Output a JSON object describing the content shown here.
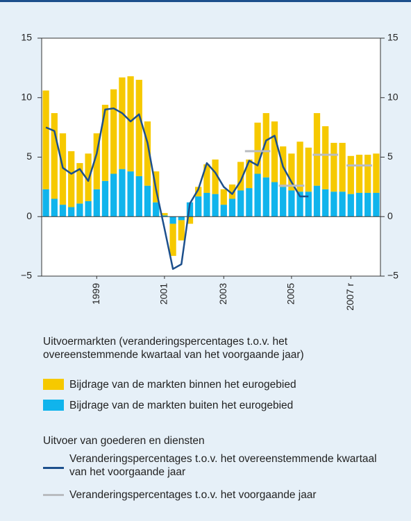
{
  "chart_data": {
    "type": "bar",
    "categories": [
      null,
      null,
      null,
      null,
      null,
      null,
      "1999",
      null,
      null,
      null,
      null,
      null,
      null,
      null,
      "2001",
      null,
      null,
      null,
      null,
      null,
      null,
      "2003",
      null,
      null,
      null,
      null,
      null,
      null,
      null,
      "2005",
      null,
      null,
      null,
      null,
      null,
      null,
      "2007 r",
      null,
      null,
      null
    ],
    "series": [
      {
        "name": "Bijdrage van de markten binnen het eurogebied",
        "type": "bar",
        "color": "#f6c900",
        "values": [
          8.3,
          7.2,
          6.0,
          4.7,
          3.4,
          4.0,
          4.7,
          6.4,
          7.1,
          7.7,
          8.0,
          8.1,
          5.4,
          2.6,
          0.2,
          -2.7,
          -1.7,
          -0.6,
          0.8,
          2.4,
          2.9,
          1.3,
          1.2,
          2.4,
          2.4,
          4.3,
          5.4,
          5.1,
          3.4,
          3.1,
          4.2,
          3.7,
          6.1,
          5.3,
          4.1,
          4.1,
          3.2,
          3.2,
          3.2,
          3.3
        ]
      },
      {
        "name": "Bijdrage van de markten buiten het eurogebied",
        "type": "bar",
        "color": "#10b4ec",
        "values": [
          2.3,
          1.5,
          1.0,
          0.8,
          1.1,
          1.3,
          2.3,
          3.0,
          3.6,
          4.0,
          3.8,
          3.4,
          2.6,
          1.2,
          0.1,
          -0.6,
          -0.3,
          1.2,
          1.7,
          2.0,
          1.9,
          1.0,
          1.5,
          2.2,
          2.4,
          3.6,
          3.3,
          2.9,
          2.5,
          2.2,
          2.1,
          2.1,
          2.6,
          2.3,
          2.1,
          2.1,
          1.9,
          2.0,
          2.0,
          2.0
        ]
      },
      {
        "name": "Veranderingspercentages t.o.v. het overeenstemmende kwartaal van het voorgaande jaar",
        "type": "line",
        "color": "#1c4f8c",
        "values": [
          7.5,
          7.2,
          4.1,
          3.6,
          4.0,
          3.0,
          5.3,
          9.0,
          9.1,
          8.7,
          8.0,
          8.6,
          6.2,
          2.3,
          -1.0,
          -4.4,
          -4.0,
          1.1,
          2.3,
          4.5,
          3.7,
          2.5,
          1.9,
          3.0,
          4.7,
          4.3,
          6.4,
          6.8,
          4.2,
          2.9,
          1.7,
          1.7,
          null,
          null,
          null,
          null,
          null,
          null,
          null,
          null
        ]
      },
      {
        "name": "Veranderingspercentages t.o.v. het voorgaande jaar",
        "type": "step",
        "color": "#b9bcc0",
        "values": [
          null,
          null,
          null,
          null,
          null,
          null,
          null,
          null,
          null,
          null,
          null,
          null,
          null,
          null,
          null,
          null,
          null,
          null,
          null,
          null,
          null,
          null,
          null,
          null,
          5.5,
          5.5,
          5.5,
          null,
          2.6,
          2.6,
          2.6,
          null,
          5.2,
          5.2,
          5.2,
          null,
          4.3,
          4.3,
          4.3,
          null
        ]
      }
    ],
    "legend_note": [
      "Uitvoermarkten (veranderingspercentages t.o.v. het",
      "overeenstemmende kwartaal van het voorgaande jaar)"
    ],
    "legend_heading": "Uitvoer van goederen en diensten",
    "ylim": [
      -5,
      15
    ],
    "yticks": [
      {
        "value": -5,
        "label": "−5"
      },
      0,
      5,
      10,
      15
    ],
    "y2lim": [
      -5,
      15
    ],
    "y2ticks": [
      {
        "value": -5,
        "label": "−5"
      },
      0,
      5,
      10,
      15
    ]
  }
}
